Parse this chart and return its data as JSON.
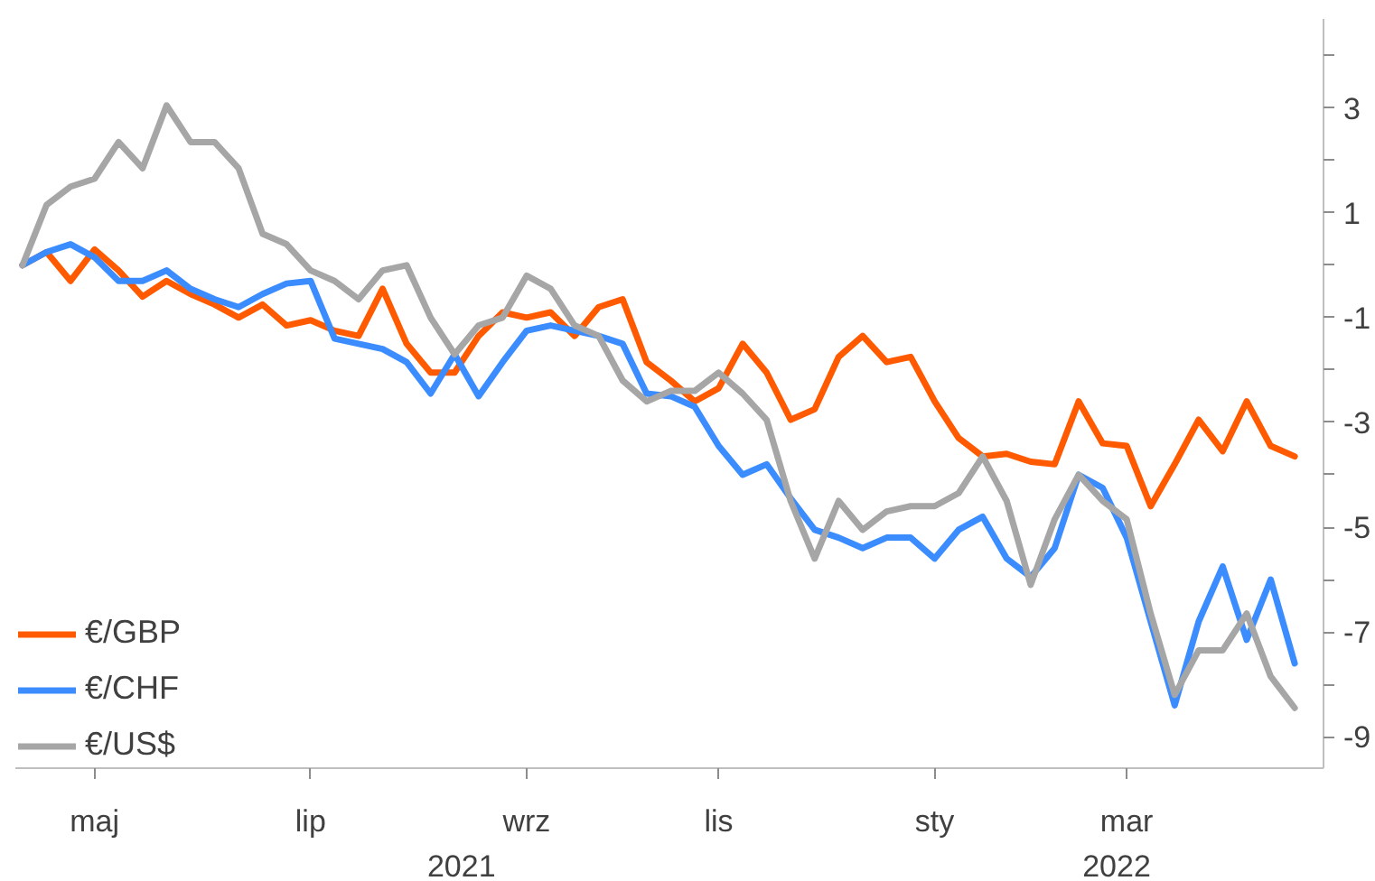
{
  "chart_data": {
    "type": "line",
    "categories": [
      null,
      null,
      null,
      "maj",
      null,
      null,
      null,
      null,
      null,
      null,
      null,
      null,
      "lip",
      null,
      null,
      null,
      null,
      null,
      null,
      null,
      null,
      "wrz",
      null,
      null,
      null,
      null,
      null,
      null,
      null,
      "lis",
      null,
      null,
      null,
      null,
      null,
      null,
      null,
      null,
      "sty",
      null,
      null,
      null,
      null,
      null,
      null,
      null,
      "mar",
      null,
      null,
      null,
      null,
      null,
      null,
      null
    ],
    "series": [
      {
        "name": "€/GBP",
        "color": "#ff5a00",
        "values": [
          0,
          0.25,
          -0.3,
          0.3,
          -0.1,
          -0.6,
          -0.3,
          -0.55,
          -0.75,
          -1.0,
          -0.75,
          -1.15,
          -1.05,
          -1.25,
          -1.35,
          -0.45,
          -1.5,
          -2.05,
          -2.05,
          -1.35,
          -0.9,
          -1.0,
          -0.9,
          -1.35,
          -0.8,
          -0.65,
          -1.85,
          -2.2,
          -2.6,
          -2.35,
          -1.5,
          -2.05,
          -2.95,
          -2.75,
          -1.75,
          -1.35,
          -1.85,
          -1.75,
          -2.6,
          -3.3,
          -3.65,
          -3.6,
          -3.75,
          -3.8,
          -2.6,
          -3.4,
          -3.45,
          -4.6,
          -3.8,
          -2.95,
          -3.55,
          -2.6,
          -3.45,
          -3.65
        ]
      },
      {
        "name": "€/CHF",
        "color": "#3a8cff",
        "values": [
          0,
          0.25,
          0.4,
          0.15,
          -0.3,
          -0.3,
          -0.1,
          -0.45,
          -0.65,
          -0.8,
          -0.55,
          -0.35,
          -0.3,
          -1.4,
          -1.5,
          -1.6,
          -1.85,
          -2.45,
          -1.7,
          -2.5,
          -1.85,
          -1.25,
          -1.15,
          -1.25,
          -1.35,
          -1.5,
          -2.45,
          -2.5,
          -2.7,
          -3.45,
          -4.0,
          -3.8,
          -4.45,
          -5.05,
          -5.2,
          -5.4,
          -5.2,
          -5.2,
          -5.6,
          -5.05,
          -4.8,
          -5.6,
          -5.95,
          -5.4,
          -4.0,
          -4.25,
          -5.2,
          -6.8,
          -8.4,
          -6.8,
          -5.75,
          -7.15,
          -6.0,
          -7.6
        ]
      },
      {
        "name": "€/US$",
        "color": "#a6a6a6",
        "values": [
          0,
          1.15,
          1.5,
          1.65,
          2.35,
          1.85,
          3.05,
          2.35,
          2.35,
          1.85,
          0.6,
          0.4,
          -0.1,
          -0.3,
          -0.65,
          -0.1,
          0,
          -1.0,
          -1.7,
          -1.15,
          -1.0,
          -0.2,
          -0.45,
          -1.15,
          -1.35,
          -2.2,
          -2.6,
          -2.4,
          -2.4,
          -2.05,
          -2.45,
          -2.95,
          -4.5,
          -5.6,
          -4.5,
          -5.05,
          -4.7,
          -4.6,
          -4.6,
          -4.35,
          -3.65,
          -4.5,
          -6.1,
          -4.85,
          -4.0,
          -4.5,
          -4.85,
          -6.65,
          -8.2,
          -7.35,
          -7.35,
          -6.65,
          -7.85,
          -8.45
        ]
      }
    ],
    "annotations": [
      "2021",
      "2022"
    ],
    "ylim": [
      -9.6,
      4.7
    ],
    "yticks": [
      -9,
      {
        "value": -8,
        "label": null
      },
      -7,
      {
        "value": -6,
        "label": null
      },
      -5,
      {
        "value": -4,
        "label": null
      },
      -3,
      {
        "value": -2,
        "label": null
      },
      -1,
      {
        "value": 0,
        "label": null
      },
      1,
      {
        "value": 2,
        "label": null
      },
      3,
      {
        "value": 4,
        "label": null
      }
    ],
    "grid": false,
    "legend": "bottom left",
    "marker": "none",
    "line_style": "solid"
  }
}
